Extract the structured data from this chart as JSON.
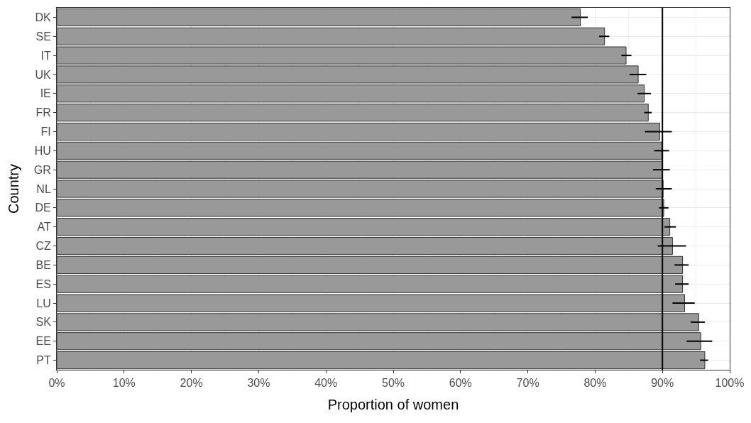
{
  "chart_data": {
    "type": "bar",
    "orientation": "horizontal",
    "xlabel": "Proportion of women",
    "ylabel": "Country",
    "categories": [
      "DK",
      "SE",
      "IT",
      "UK",
      "IE",
      "FR",
      "FI",
      "HU",
      "GR",
      "NL",
      "DE",
      "AT",
      "CZ",
      "BE",
      "ES",
      "LU",
      "SK",
      "EE",
      "PT"
    ],
    "values": [
      77.8,
      81.4,
      84.6,
      86.4,
      87.3,
      87.9,
      89.6,
      89.9,
      90.0,
      90.1,
      90.2,
      91.1,
      91.5,
      93.0,
      93.0,
      93.3,
      95.4,
      95.7,
      96.3
    ],
    "errors": [
      [
        76.5,
        78.9
      ],
      [
        80.6,
        82.1
      ],
      [
        83.9,
        85.4
      ],
      [
        85.1,
        87.6
      ],
      [
        86.3,
        88.3
      ],
      [
        87.3,
        88.4
      ],
      [
        87.4,
        91.4
      ],
      [
        88.8,
        91.0
      ],
      [
        88.6,
        91.1
      ],
      [
        89.0,
        91.4
      ],
      [
        89.5,
        90.9
      ],
      [
        90.3,
        92.0
      ],
      [
        89.3,
        93.5
      ],
      [
        91.8,
        93.9
      ],
      [
        91.9,
        93.9
      ],
      [
        91.5,
        94.8
      ],
      [
        94.2,
        96.3
      ],
      [
        93.6,
        97.4
      ],
      [
        95.6,
        96.8
      ]
    ],
    "color": "#999999",
    "xlim": [
      0,
      100
    ],
    "xticks": [
      {
        "value": 0,
        "label": "0%"
      },
      {
        "value": 10,
        "label": "10%"
      },
      {
        "value": 20,
        "label": "20%"
      },
      {
        "value": 30,
        "label": "30%"
      },
      {
        "value": 40,
        "label": "40%"
      },
      {
        "value": 50,
        "label": "50%"
      },
      {
        "value": 60,
        "label": "60%"
      },
      {
        "value": 70,
        "label": "70%"
      },
      {
        "value": 80,
        "label": "80%"
      },
      {
        "value": 90,
        "label": "90%"
      },
      {
        "value": 100,
        "label": "100%"
      }
    ],
    "ref_lines": [
      {
        "axis": "x",
        "value": 90,
        "color": "#000000"
      }
    ],
    "grid": true
  }
}
